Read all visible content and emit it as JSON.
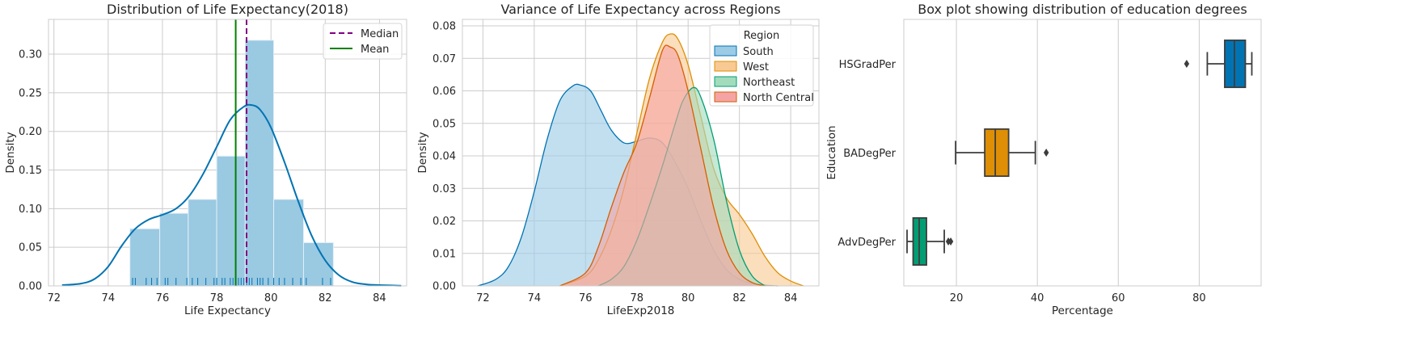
{
  "chart_data": [
    {
      "type": "histogram",
      "title": "Distribution of Life Expectancy(2018)",
      "xlabel": "Life Expectancy",
      "ylabel": "Density",
      "xlim": [
        71.8,
        85.0
      ],
      "ylim": [
        0,
        0.345
      ],
      "xticks": [
        72,
        74,
        76,
        78,
        80,
        82,
        84
      ],
      "yticks": [
        0.0,
        0.05,
        0.1,
        0.15,
        0.2,
        0.25,
        0.3
      ],
      "ytick_format": 2,
      "grid": true,
      "bins": [
        {
          "x0": 74.8,
          "x1": 75.9,
          "density": 0.074
        },
        {
          "x0": 75.9,
          "x1": 76.95,
          "density": 0.094
        },
        {
          "x0": 76.95,
          "x1": 78.0,
          "density": 0.112
        },
        {
          "x0": 78.0,
          "x1": 79.05,
          "density": 0.168
        },
        {
          "x0": 79.05,
          "x1": 80.1,
          "density": 0.318
        },
        {
          "x0": 80.1,
          "x1": 81.2,
          "density": 0.112
        },
        {
          "x0": 81.2,
          "x1": 82.3,
          "density": 0.056
        }
      ],
      "kde": {
        "x": [
          72.3,
          73.0,
          73.5,
          74.0,
          74.5,
          75.0,
          75.5,
          76.0,
          76.5,
          77.0,
          77.5,
          78.0,
          78.5,
          79.0,
          79.3,
          79.6,
          80.0,
          80.5,
          81.0,
          81.5,
          82.0,
          82.5,
          83.0,
          83.5,
          84.0,
          84.8
        ],
        "y": [
          0.001,
          0.003,
          0.009,
          0.025,
          0.052,
          0.074,
          0.086,
          0.092,
          0.1,
          0.117,
          0.145,
          0.18,
          0.215,
          0.232,
          0.234,
          0.228,
          0.205,
          0.16,
          0.11,
          0.065,
          0.033,
          0.014,
          0.005,
          0.002,
          0.001,
          0.0003
        ]
      },
      "rug": [
        74.9,
        75.0,
        75.4,
        75.6,
        75.8,
        76.1,
        76.2,
        76.5,
        76.9,
        77.1,
        77.3,
        77.6,
        77.9,
        78.0,
        78.2,
        78.3,
        78.5,
        78.6,
        78.8,
        78.9,
        79.0,
        79.1,
        79.2,
        79.3,
        79.5,
        79.6,
        79.7,
        79.9,
        80.1,
        80.3,
        80.5,
        80.8,
        81.1,
        81.3,
        81.9,
        82.2
      ],
      "median": 79.1,
      "mean": 78.7,
      "legend": {
        "placement": "upper right",
        "entries": [
          "Median",
          "Mean"
        ]
      },
      "colors": {
        "bars": "#9ac9e2",
        "bar_edge": "#e3eff7",
        "kde": "#0173b2",
        "median": "#800080",
        "mean": "#008000"
      }
    },
    {
      "type": "area",
      "title": "Variance of Life Expectancy across Regions",
      "xlabel": "LifeExp2018",
      "ylabel": "Density",
      "xlim": [
        71.2,
        85.1
      ],
      "ylim": [
        0,
        0.082
      ],
      "xticks": [
        72,
        74,
        76,
        78,
        80,
        82,
        84
      ],
      "yticks": [
        0.0,
        0.01,
        0.02,
        0.03,
        0.04,
        0.05,
        0.06,
        0.07,
        0.08
      ],
      "ytick_format": 2,
      "grid": true,
      "legend": {
        "title": "Region",
        "placement": "upper right"
      },
      "series": [
        {
          "name": "South",
          "color": "#0173b2",
          "fill": "#9ccbe6",
          "x": [
            71.8,
            72.5,
            73.0,
            73.5,
            74.0,
            74.5,
            75.0,
            75.5,
            75.8,
            76.2,
            76.6,
            77.0,
            77.5,
            78.0,
            78.5,
            79.0,
            79.5,
            80.0,
            80.5,
            81.0,
            81.5,
            82.0,
            82.5,
            83.0,
            83.5
          ],
          "values": [
            0.0,
            0.002,
            0.006,
            0.015,
            0.029,
            0.045,
            0.057,
            0.0615,
            0.0618,
            0.06,
            0.054,
            0.048,
            0.044,
            0.0445,
            0.0455,
            0.044,
            0.038,
            0.03,
            0.02,
            0.011,
            0.005,
            0.002,
            0.0008,
            0.0002,
            0.0
          ]
        },
        {
          "name": "West",
          "color": "#de8f05",
          "fill": "#f8c993",
          "x": [
            75.0,
            76.0,
            76.5,
            77.0,
            77.5,
            78.0,
            78.5,
            79.0,
            79.3,
            79.6,
            80.0,
            80.5,
            81.0,
            81.5,
            82.0,
            82.5,
            83.0,
            83.5,
            84.0,
            84.5
          ],
          "values": [
            0.0,
            0.003,
            0.008,
            0.017,
            0.03,
            0.047,
            0.064,
            0.075,
            0.0775,
            0.076,
            0.068,
            0.052,
            0.036,
            0.027,
            0.022,
            0.016,
            0.009,
            0.004,
            0.0015,
            0.0
          ]
        },
        {
          "name": "Northeast",
          "color": "#029e73",
          "fill": "#a3dcbd",
          "x": [
            76.5,
            77.0,
            77.5,
            78.0,
            78.5,
            79.0,
            79.5,
            79.8,
            80.2,
            80.5,
            81.0,
            81.5,
            82.0,
            82.5,
            83.0
          ],
          "values": [
            0.0,
            0.002,
            0.006,
            0.014,
            0.025,
            0.037,
            0.05,
            0.057,
            0.061,
            0.058,
            0.045,
            0.026,
            0.011,
            0.003,
            0.0
          ]
        },
        {
          "name": "North Central",
          "color": "#d55e00",
          "fill": "#f4a4a4",
          "x": [
            75.0,
            76.0,
            76.5,
            77.0,
            77.5,
            78.0,
            78.5,
            79.0,
            79.3,
            79.6,
            80.0,
            80.5,
            81.0,
            81.5,
            82.0,
            82.5,
            83.0
          ],
          "values": [
            0.0,
            0.004,
            0.012,
            0.024,
            0.035,
            0.044,
            0.058,
            0.0725,
            0.0735,
            0.071,
            0.06,
            0.042,
            0.024,
            0.011,
            0.004,
            0.001,
            0.0
          ]
        }
      ]
    },
    {
      "type": "box",
      "title": "Box plot showing distribution of education degrees",
      "xlabel": "Percentage",
      "ylabel": "Education",
      "xlim": [
        7.0,
        95.3
      ],
      "xticks": [
        20,
        40,
        60,
        80
      ],
      "orientation": "horizontal",
      "grid": true,
      "categories": [
        "HSGradPer",
        "BADegPer",
        "AdvDegPer"
      ],
      "boxes": [
        {
          "category": "HSGradPer",
          "color": "#0173b2",
          "whisker_low": 82.0,
          "q1": 86.3,
          "median": 88.7,
          "q3": 91.4,
          "whisker_high": 93.0,
          "outliers": [
            76.9
          ]
        },
        {
          "category": "BADegPer",
          "color": "#de8f05",
          "whisker_low": 19.8,
          "q1": 27.0,
          "median": 29.6,
          "q3": 32.9,
          "whisker_high": 39.5,
          "outliers": [
            42.2
          ]
        },
        {
          "category": "AdvDegPer",
          "color": "#029e73",
          "whisker_low": 7.8,
          "q1": 9.3,
          "median": 10.8,
          "q3": 12.6,
          "whisker_high": 17.0,
          "outliers": [
            18.0,
            18.6
          ]
        }
      ]
    }
  ]
}
